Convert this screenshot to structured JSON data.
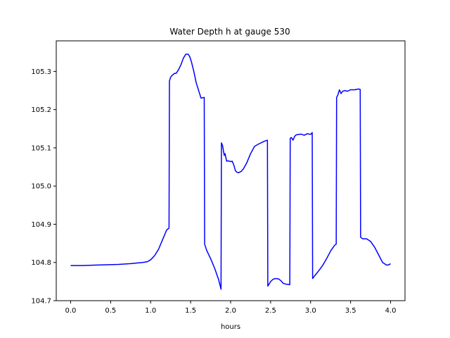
{
  "chart_data": {
    "type": "line",
    "title": "Water Depth h at gauge 530",
    "xlabel": "hours",
    "ylabel": "",
    "xlim": [
      -0.18,
      4.18
    ],
    "ylim": [
      104.7,
      105.38
    ],
    "xticks": [
      0.0,
      0.5,
      1.0,
      1.5,
      2.0,
      2.5,
      3.0,
      3.5,
      4.0
    ],
    "xtick_labels": [
      "0.0",
      "0.5",
      "1.0",
      "1.5",
      "2.0",
      "2.5",
      "3.0",
      "3.5",
      "4.0"
    ],
    "yticks": [
      104.7,
      104.8,
      104.9,
      105.0,
      105.1,
      105.2,
      105.3
    ],
    "ytick_labels": [
      "104.7",
      "104.8",
      "104.9",
      "105.0",
      "105.1",
      "105.2",
      "105.3"
    ],
    "grid": false,
    "series": [
      {
        "color": "#0000ff",
        "x": [
          0.0,
          0.15,
          0.3,
          0.45,
          0.6,
          0.75,
          0.9,
          0.96,
          1.0,
          1.05,
          1.1,
          1.15,
          1.2,
          1.23,
          1.235,
          1.25,
          1.27,
          1.3,
          1.32,
          1.35,
          1.38,
          1.41,
          1.44,
          1.47,
          1.49,
          1.51,
          1.54,
          1.57,
          1.6,
          1.63,
          1.67,
          1.675,
          1.7,
          1.75,
          1.8,
          1.85,
          1.88,
          1.885,
          1.9,
          1.92,
          1.93,
          1.95,
          1.97,
          2.0,
          2.02,
          2.04,
          2.06,
          2.08,
          2.1,
          2.13,
          2.16,
          2.2,
          2.25,
          2.3,
          2.35,
          2.4,
          2.43,
          2.46,
          2.465,
          2.5,
          2.53,
          2.56,
          2.6,
          2.63,
          2.66,
          2.7,
          2.74,
          2.745,
          2.76,
          2.78,
          2.8,
          2.82,
          2.85,
          2.88,
          2.92,
          2.96,
          3.0,
          3.02,
          3.025,
          3.05,
          3.1,
          3.15,
          3.2,
          3.25,
          3.3,
          3.32,
          3.325,
          3.34,
          3.36,
          3.38,
          3.4,
          3.43,
          3.46,
          3.5,
          3.55,
          3.6,
          3.62,
          3.625,
          3.65,
          3.7,
          3.75,
          3.8,
          3.85,
          3.9,
          3.95,
          3.98,
          4.0
        ],
        "y": [
          104.792,
          104.792,
          104.793,
          104.794,
          104.795,
          104.797,
          104.8,
          104.802,
          104.807,
          104.818,
          104.835,
          104.86,
          104.885,
          104.89,
          105.275,
          105.285,
          105.29,
          105.295,
          105.295,
          105.305,
          105.318,
          105.335,
          105.345,
          105.345,
          105.338,
          105.325,
          105.3,
          105.27,
          105.25,
          105.23,
          105.232,
          104.848,
          104.832,
          104.81,
          104.785,
          104.755,
          104.73,
          105.113,
          105.105,
          105.08,
          105.085,
          105.065,
          105.066,
          105.064,
          105.065,
          105.055,
          105.04,
          105.036,
          105.035,
          105.038,
          105.045,
          105.06,
          105.085,
          105.104,
          105.11,
          105.115,
          105.118,
          105.12,
          104.738,
          104.75,
          104.756,
          104.758,
          104.757,
          104.752,
          104.745,
          104.743,
          104.742,
          105.125,
          105.127,
          105.12,
          105.13,
          105.134,
          105.135,
          105.136,
          105.133,
          105.137,
          105.135,
          105.14,
          104.758,
          104.765,
          104.778,
          104.792,
          104.81,
          104.83,
          104.845,
          104.848,
          105.232,
          105.238,
          105.252,
          105.242,
          105.248,
          105.25,
          105.248,
          105.252,
          105.252,
          105.254,
          105.253,
          104.866,
          104.862,
          104.862,
          104.855,
          104.84,
          104.82,
          104.8,
          104.793,
          104.794,
          104.797
        ]
      }
    ]
  }
}
